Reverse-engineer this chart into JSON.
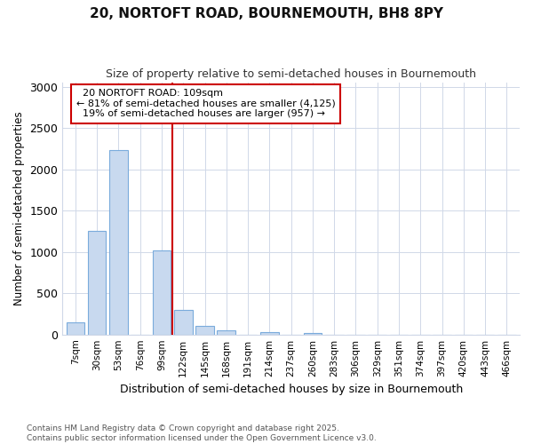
{
  "title_line1": "20, NORTOFT ROAD, BOURNEMOUTH, BH8 8PY",
  "title_line2": "Size of property relative to semi-detached houses in Bournemouth",
  "xlabel": "Distribution of semi-detached houses by size in Bournemouth",
  "ylabel": "Number of semi-detached properties",
  "footnote1": "Contains HM Land Registry data © Crown copyright and database right 2025.",
  "footnote2": "Contains public sector information licensed under the Open Government Licence v3.0.",
  "bar_labels": [
    "7sqm",
    "30sqm",
    "53sqm",
    "76sqm",
    "99sqm",
    "122sqm",
    "145sqm",
    "168sqm",
    "191sqm",
    "214sqm",
    "237sqm",
    "260sqm",
    "283sqm",
    "306sqm",
    "329sqm",
    "351sqm",
    "374sqm",
    "397sqm",
    "420sqm",
    "443sqm",
    "466sqm"
  ],
  "bar_values": [
    150,
    1250,
    2230,
    0,
    1020,
    300,
    100,
    50,
    0,
    30,
    0,
    20,
    0,
    0,
    0,
    0,
    0,
    0,
    0,
    0,
    0
  ],
  "bar_color": "#c8d9ef",
  "bar_edgecolor": "#7aabdc",
  "grid_color": "#d0d8e8",
  "bg_color": "#ffffff",
  "plot_bg_color": "#ffffff",
  "property_label": "20 NORTOFT ROAD: 109sqm",
  "pct_smaller": 81,
  "pct_larger": 19,
  "count_smaller": 4125,
  "count_larger": 957,
  "vline_color": "#cc0000",
  "annotation_box_edgecolor": "#cc0000",
  "ylim": [
    0,
    3050
  ],
  "yticks": [
    0,
    500,
    1000,
    1500,
    2000,
    2500,
    3000
  ],
  "vline_x": 4.5
}
